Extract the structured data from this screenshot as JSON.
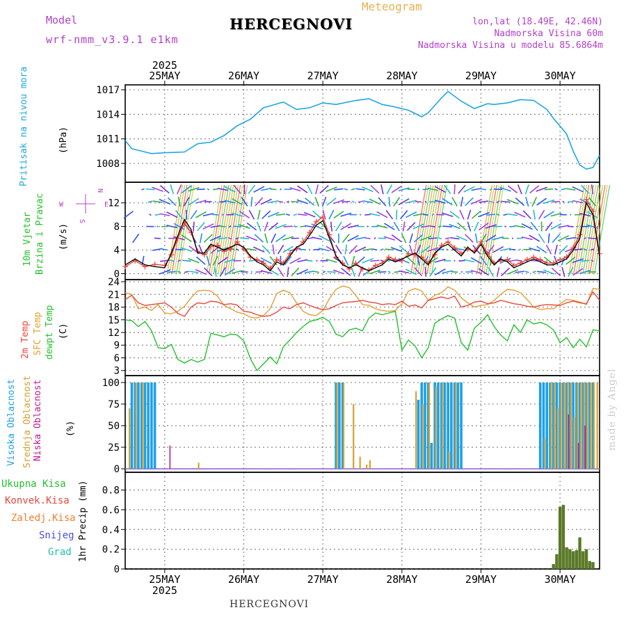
{
  "header": {
    "model_label": "Model",
    "model_name": "wrf-nmm_v3.9.1 e1km",
    "title": "HERCEGNOVI",
    "subtitle": "Meteogram",
    "lonlat": "lon,lat (18.49E, 42.46N)",
    "elevation": "Nadmorska Visina 60m",
    "model_elevation": "Nadmorska Visina u modelu 85.6864m",
    "footer": "HERCEGNOVI",
    "credit": "made by Angel"
  },
  "colors": {
    "pressure": "#1ea7e1",
    "t2m": "#e8463c",
    "sfc": "#e0a030",
    "dewpt": "#22c02a",
    "visoka": "#1ea0e8",
    "srednja": "#d4a030",
    "niska": "#c01890",
    "precip": "#5a7a28",
    "model_text": "#b040c8",
    "meteogram_text": "#e8b050"
  },
  "x_axis": {
    "year": "2025",
    "days": [
      "25MAY",
      "26MAY",
      "27MAY",
      "28MAY",
      "29MAY",
      "30MAY"
    ],
    "range_hours": [
      -12,
      132
    ]
  },
  "chart_data": [
    {
      "type": "line",
      "panel": "pressure",
      "ylabel_lines": [
        "Pritisak na nivou mora"
      ],
      "unit": "(hPa)",
      "ylim": [
        1005.7,
        1017.6
      ],
      "yticks": [
        1008,
        1011,
        1014,
        1017
      ],
      "x": [
        -12,
        -10,
        -8,
        -4,
        0,
        6,
        10,
        14,
        18,
        22,
        26,
        30,
        36,
        40,
        44,
        48,
        52,
        58,
        62,
        66,
        70,
        74,
        78,
        80,
        84,
        86,
        90,
        94,
        98,
        100,
        104,
        108,
        112,
        116,
        118,
        122,
        124,
        126,
        128,
        130,
        132
      ],
      "values": [
        1010.8,
        1009.8,
        1009.6,
        1009.2,
        1009.3,
        1009.4,
        1010.4,
        1010.6,
        1011.4,
        1012.6,
        1013.4,
        1014.8,
        1015.5,
        1014.6,
        1014.8,
        1015.4,
        1015.2,
        1015.7,
        1015.9,
        1015.2,
        1014.9,
        1014.5,
        1013.7,
        1014.2,
        1016.0,
        1016.8,
        1015.6,
        1014.7,
        1015.3,
        1015.2,
        1015.4,
        1015.8,
        1015.7,
        1014.6,
        1013.5,
        1011.6,
        1009.5,
        1007.8,
        1007.3,
        1007.5,
        1009.0
      ]
    },
    {
      "type": "line",
      "panel": "wind",
      "ylabel_lines": [
        "10m Vjetar",
        "Brzina i Pravac"
      ],
      "unit": "(m/s)",
      "ylim": [
        -1,
        15.5
      ],
      "yticks": [
        0,
        4,
        8,
        12
      ],
      "compass": [
        "N",
        "E",
        "S",
        "W"
      ],
      "x": [
        -12,
        -9,
        -6,
        -3,
        0,
        2,
        4,
        6,
        8,
        10,
        12,
        14,
        16,
        18,
        20,
        22,
        24,
        26,
        28,
        30,
        32,
        34,
        36,
        38,
        40,
        42,
        44,
        46,
        48,
        50,
        52,
        54,
        56,
        58,
        60,
        62,
        64,
        66,
        68,
        70,
        72,
        74,
        76,
        78,
        80,
        82,
        84,
        86,
        88,
        90,
        92,
        94,
        96,
        98,
        100,
        102,
        104,
        106,
        108,
        110,
        112,
        114,
        116,
        118,
        120,
        122,
        124,
        126,
        128,
        130,
        132
      ],
      "series": [
        {
          "name": "10m Vjetar",
          "values": [
            1.5,
            2.5,
            1.5,
            1.2,
            1.0,
            3.5,
            6.5,
            9.2,
            7.5,
            3.5,
            3.5,
            5.0,
            4.5,
            4.0,
            4.5,
            5.0,
            4.5,
            3.0,
            2.0,
            1.5,
            0.5,
            2.0,
            1.5,
            3.0,
            4.5,
            5.0,
            6.5,
            8.2,
            9.0,
            6.0,
            3.0,
            1.5,
            1.0,
            1.5,
            1.0,
            0.5,
            1.0,
            1.5,
            2.5,
            2.0,
            2.5,
            3.0,
            3.5,
            2.5,
            1.5,
            3.5,
            4.5,
            5.0,
            4.0,
            3.0,
            4.5,
            3.5,
            5.0,
            3.0,
            1.5,
            2.5,
            2.0,
            1.0,
            1.5,
            2.0,
            2.5,
            2.0,
            1.5,
            1.5,
            2.0,
            2.5,
            4.0,
            6.0,
            12.0,
            10.0,
            3.0
          ]
        },
        {
          "name": "wind gust",
          "values": [
            1.2,
            2.2,
            1.2,
            1.6,
            1.4,
            3.2,
            6.0,
            8.6,
            7.0,
            3.8,
            3.2,
            4.6,
            4.8,
            3.8,
            4.2,
            5.4,
            4.2,
            2.8,
            2.4,
            1.8,
            0.9,
            2.4,
            1.8,
            3.4,
            4.2,
            5.4,
            7.0,
            8.8,
            9.6,
            6.6,
            2.8,
            1.8,
            0.8,
            1.8,
            0.8,
            0.6,
            1.4,
            1.8,
            2.8,
            2.4,
            2.2,
            3.4,
            3.2,
            2.8,
            1.8,
            3.2,
            4.8,
            5.4,
            4.4,
            3.4,
            4.2,
            3.8,
            5.4,
            3.4,
            1.8,
            2.2,
            2.4,
            1.4,
            1.8,
            2.4,
            2.8,
            2.4,
            1.8,
            1.8,
            2.4,
            2.8,
            4.4,
            6.6,
            12.6,
            10.6,
            3.4
          ]
        }
      ]
    },
    {
      "type": "line",
      "panel": "temperature",
      "ylabel_lines": [
        "2m Temp",
        "SFC Temp",
        "dewpt Temp"
      ],
      "unit": "(C)",
      "ylim": [
        1.8,
        24.5
      ],
      "yticks": [
        3,
        6,
        9,
        12,
        15,
        18,
        21,
        24
      ],
      "x": [
        -12,
        -10,
        -8,
        -6,
        -4,
        -2,
        0,
        2,
        4,
        6,
        8,
        10,
        12,
        14,
        16,
        18,
        20,
        22,
        24,
        26,
        28,
        30,
        32,
        34,
        36,
        38,
        40,
        42,
        44,
        46,
        48,
        50,
        52,
        54,
        56,
        58,
        60,
        62,
        64,
        66,
        68,
        70,
        72,
        74,
        76,
        78,
        80,
        82,
        84,
        86,
        88,
        90,
        92,
        94,
        96,
        98,
        100,
        102,
        104,
        106,
        108,
        110,
        112,
        114,
        116,
        118,
        120,
        122,
        124,
        126,
        128,
        130,
        132
      ],
      "series": [
        {
          "name": "2m Temp",
          "values": [
            19.8,
            20.8,
            19.0,
            18.4,
            18.6,
            18.8,
            19.0,
            18.0,
            16.5,
            15.8,
            18.0,
            19.0,
            18.8,
            19.4,
            19.2,
            18.6,
            18.8,
            18.5,
            17.0,
            16.8,
            16.2,
            15.8,
            16.0,
            16.8,
            18.0,
            17.6,
            18.6,
            19.0,
            18.4,
            17.8,
            17.4,
            17.6,
            18.4,
            19.0,
            19.2,
            19.3,
            19.6,
            19.2,
            19.0,
            18.6,
            18.8,
            18.6,
            19.4,
            18.2,
            18.5,
            17.8,
            19.6,
            20.0,
            20.4,
            20.0,
            20.6,
            18.0,
            18.4,
            19.2,
            19.4,
            18.8,
            19.0,
            19.6,
            19.2,
            18.8,
            18.6,
            18.2,
            18.0,
            18.4,
            18.6,
            18.5,
            18.4,
            19.0,
            19.4,
            19.0,
            18.8,
            21.6,
            19.6
          ]
        },
        {
          "name": "SFC Temp",
          "values": [
            21.4,
            21.0,
            17.6,
            18.0,
            17.2,
            18.6,
            16.6,
            16.4,
            17.0,
            18.2,
            20.2,
            21.8,
            22.0,
            21.8,
            20.6,
            18.4,
            17.6,
            16.8,
            16.4,
            15.6,
            15.4,
            16.0,
            17.6,
            21.2,
            22.0,
            21.4,
            19.0,
            17.0,
            16.2,
            16.0,
            17.2,
            20.0,
            22.2,
            23.0,
            22.6,
            20.8,
            18.6,
            18.4,
            17.6,
            17.2,
            17.0,
            17.2,
            18.8,
            21.8,
            22.4,
            21.8,
            19.6,
            20.8,
            21.4,
            22.8,
            22.0,
            20.2,
            19.0,
            18.0,
            18.4,
            18.6,
            19.6,
            21.0,
            22.2,
            22.0,
            21.4,
            19.8,
            18.0,
            17.4,
            17.6,
            17.6,
            18.8,
            19.8,
            19.6,
            19.2,
            18.6,
            22.4,
            22.2
          ]
        },
        {
          "name": "dewpt Temp",
          "values": [
            15.0,
            14.8,
            13.4,
            14.6,
            12.4,
            8.4,
            8.2,
            9.2,
            5.6,
            4.8,
            5.6,
            5.0,
            5.6,
            11.8,
            11.4,
            11.0,
            11.6,
            11.4,
            10.0,
            5.8,
            3.0,
            4.6,
            6.2,
            4.6,
            8.6,
            10.2,
            12.0,
            13.4,
            14.6,
            15.0,
            15.6,
            14.6,
            11.6,
            11.0,
            12.6,
            13.0,
            12.4,
            15.4,
            16.6,
            16.2,
            16.6,
            17.0,
            7.8,
            10.2,
            8.8,
            6.0,
            8.4,
            14.2,
            15.2,
            16.0,
            15.4,
            9.6,
            7.8,
            13.0,
            14.4,
            16.2,
            13.4,
            11.4,
            10.0,
            13.8,
            12.0,
            15.0,
            14.0,
            14.4,
            13.8,
            12.6,
            9.6,
            10.8,
            8.4,
            10.4,
            8.6,
            12.6,
            12.4
          ]
        }
      ]
    },
    {
      "type": "bar",
      "panel": "clouds",
      "ylabel_lines": [
        "Visoka Oblacnost",
        "Srednja Oblacnost",
        "Niska Oblacnost"
      ],
      "unit": "(%)",
      "ylim": [
        -4,
        108
      ],
      "yticks": [
        0,
        25,
        50,
        75,
        100
      ],
      "series": [
        {
          "name": "Visoka Oblacnost",
          "x": [
            -10,
            -9,
            -8,
            -7,
            -6,
            -5,
            -4,
            -3,
            52,
            53,
            54,
            77,
            78,
            79,
            80,
            81,
            82,
            83,
            84,
            85,
            86,
            87,
            88,
            89,
            90,
            114,
            115,
            116,
            117,
            118,
            119,
            120,
            121,
            122,
            123,
            124,
            125,
            126,
            127,
            128,
            129,
            130
          ],
          "values": [
            100,
            100,
            100,
            100,
            100,
            100,
            100,
            100,
            100,
            100,
            100,
            80,
            100,
            100,
            100,
            30,
            100,
            100,
            100,
            100,
            100,
            100,
            100,
            100,
            100,
            100,
            100,
            100,
            100,
            100,
            100,
            100,
            100,
            100,
            100,
            100,
            100,
            100,
            100,
            100,
            100,
            100
          ]
        },
        {
          "name": "Srednja Oblacnost",
          "x": [
            -11,
            -9,
            -7,
            10,
            52,
            54,
            57,
            59,
            61,
            62,
            76,
            78,
            80,
            82,
            84,
            86,
            88,
            115,
            117,
            118,
            119,
            120,
            121,
            122,
            123,
            124,
            125,
            126,
            127,
            128,
            129,
            130,
            131
          ],
          "values": [
            70,
            100,
            100,
            7,
            100,
            100,
            75,
            14,
            5,
            10,
            90,
            75,
            100,
            95,
            100,
            20,
            100,
            35,
            100,
            100,
            70,
            100,
            100,
            100,
            100,
            60,
            100,
            100,
            100,
            100,
            100,
            100,
            100
          ]
        },
        {
          "name": "Niska Oblacnost",
          "x": [
            1,
            122,
            125,
            127
          ],
          "values": [
            27,
            63,
            30,
            50
          ]
        }
      ]
    },
    {
      "type": "bar",
      "panel": "precipitation",
      "ylabel_lines": [
        "1hr Precip (mm)"
      ],
      "legend": [
        "Ukupna Kisa",
        "Konvek.Kisa",
        "Zaledj.Kisa",
        "Snijeg",
        "Grad"
      ],
      "ylim": [
        0,
        0.98
      ],
      "yticks": [
        0,
        0.2,
        0.4,
        0.6,
        0.8
      ],
      "x": [
        118,
        119,
        120,
        121,
        122,
        123,
        124,
        125,
        126,
        127,
        128,
        129,
        130,
        131
      ],
      "values": [
        0.05,
        0.15,
        0.63,
        0.65,
        0.22,
        0.2,
        0.18,
        0.19,
        0.32,
        0.18,
        0.2,
        0.08,
        0.07,
        0.0
      ]
    }
  ]
}
